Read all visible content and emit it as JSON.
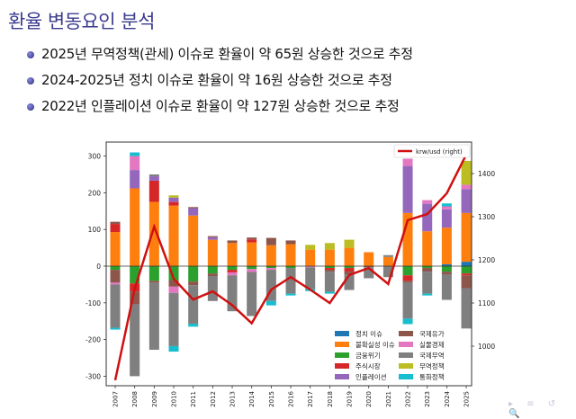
{
  "slide": {
    "title": "환율 변동요인 분석",
    "bullets": [
      "2025년 무역정책(관세) 이슈로 환율이 약 65원 상승한 것으로 추정",
      "2024-2025년 정치 이슈로 환율이 약 16원 상승한 것으로 추정",
      "2022년 인플레이션 이슈로 환율이 약 127원 상승한 것으로 추정"
    ],
    "nav_icons": [
      "▸",
      "≡",
      "↺",
      "🔍"
    ]
  },
  "colors": {
    "title": "#3b3b8f",
    "정치 이슈": "#1f77b4",
    "불확실성 이슈": "#ff7f0e",
    "금융위기": "#2ca02c",
    "주식시장": "#d62728",
    "인플레이션": "#9467bd",
    "국제유가": "#8c564b",
    "실물경제": "#e377c2",
    "국제무역": "#7f7f7f",
    "무역정책": "#bcbd22",
    "통화정책": "#17becf",
    "line": "#d01010"
  },
  "chart_data": {
    "type": "bar",
    "stacked": true,
    "title": "",
    "xlabel": "",
    "ylabel": "",
    "ylim": [
      -330,
      330
    ],
    "yticks": [
      -300,
      -200,
      -100,
      0,
      100,
      200,
      300
    ],
    "y2lim": [
      905,
      1475
    ],
    "y2ticks": [
      1000,
      1100,
      1200,
      1300,
      1400
    ],
    "categories": [
      "2007",
      "2008",
      "2009",
      "2010",
      "2011",
      "2012",
      "2013",
      "2014",
      "2015",
      "2016",
      "2017",
      "2018",
      "2019",
      "2020",
      "2021",
      "2022",
      "2023",
      "2024",
      "2025"
    ],
    "legend_position": "lower right (two columns)",
    "positive_series": [
      {
        "name": "정치 이슈",
        "values": [
          0,
          0,
          0,
          0,
          0,
          0,
          0,
          0,
          0,
          0,
          0,
          0,
          0,
          0,
          0,
          0,
          0,
          5,
          12
        ]
      },
      {
        "name": "불확실성 이슈",
        "values": [
          93,
          212,
          175,
          165,
          138,
          72,
          63,
          65,
          57,
          60,
          45,
          45,
          50,
          38,
          25,
          145,
          95,
          100,
          133
        ]
      },
      {
        "name": "주식시장",
        "values": [
          22,
          0,
          58,
          10,
          0,
          0,
          0,
          8,
          0,
          0,
          0,
          0,
          0,
          0,
          0,
          0,
          0,
          0,
          0
        ]
      },
      {
        "name": "인플레이션",
        "values": [
          0,
          50,
          12,
          12,
          20,
          7,
          0,
          0,
          0,
          0,
          0,
          0,
          0,
          0,
          0,
          128,
          75,
          50,
          65
        ]
      },
      {
        "name": "국제유가",
        "values": [
          6,
          0,
          0,
          0,
          3,
          3,
          7,
          5,
          20,
          10,
          0,
          0,
          0,
          0,
          0,
          0,
          0,
          0,
          0
        ]
      },
      {
        "name": "실물경제",
        "values": [
          0,
          38,
          0,
          0,
          0,
          0,
          0,
          0,
          0,
          0,
          0,
          0,
          0,
          0,
          0,
          20,
          10,
          8,
          12
        ]
      },
      {
        "name": "무역정책",
        "values": [
          0,
          0,
          0,
          6,
          0,
          0,
          0,
          0,
          0,
          0,
          13,
          18,
          22,
          0,
          0,
          0,
          0,
          0,
          65
        ]
      },
      {
        "name": "통화정책",
        "values": [
          0,
          10,
          0,
          0,
          0,
          0,
          0,
          0,
          0,
          0,
          0,
          0,
          0,
          0,
          0,
          0,
          0,
          8,
          0
        ]
      },
      {
        "name": "국제무역",
        "values": [
          0,
          0,
          5,
          0,
          0,
          0,
          0,
          0,
          0,
          0,
          0,
          0,
          0,
          0,
          5,
          0,
          0,
          0,
          0
        ]
      }
    ],
    "negative_series": [
      {
        "name": "정치 이슈",
        "values": [
          0,
          0,
          0,
          0,
          0,
          0,
          0,
          0,
          0,
          0,
          0,
          0,
          0,
          0,
          0,
          0,
          0,
          0,
          0
        ]
      },
      {
        "name": "금융위기",
        "values": [
          -10,
          -47,
          -40,
          -38,
          -42,
          -20,
          -10,
          -8,
          -5,
          -5,
          0,
          -5,
          -5,
          0,
          0,
          -25,
          -5,
          -15,
          -20
        ]
      },
      {
        "name": "주식시장",
        "values": [
          0,
          -22,
          0,
          0,
          0,
          0,
          -7,
          0,
          0,
          0,
          0,
          -5,
          -10,
          0,
          0,
          -15,
          0,
          0,
          -5
        ]
      },
      {
        "name": "국제유가",
        "values": [
          -35,
          -35,
          -5,
          -18,
          -10,
          -7,
          0,
          0,
          0,
          0,
          0,
          -5,
          -8,
          -3,
          0,
          -5,
          -10,
          -7,
          -35
        ]
      },
      {
        "name": "실물경제",
        "values": [
          -5,
          0,
          0,
          -17,
          0,
          0,
          -8,
          -8,
          -5,
          0,
          -3,
          0,
          0,
          0,
          0,
          0,
          0,
          0,
          0
        ]
      },
      {
        "name": "국제무역",
        "values": [
          -118,
          -196,
          -183,
          -145,
          -105,
          -68,
          -98,
          -120,
          -85,
          -70,
          -60,
          -55,
          -42,
          -30,
          -30,
          -98,
          -60,
          -70,
          -110
        ]
      },
      {
        "name": "통화정책",
        "values": [
          -5,
          0,
          0,
          -15,
          -8,
          0,
          0,
          0,
          -12,
          -5,
          -5,
          -5,
          0,
          0,
          0,
          -15,
          -5,
          0,
          0
        ]
      }
    ],
    "line_series": {
      "name": "krw/usd (right)",
      "axis": "right",
      "values": [
        921,
        1133,
        1277,
        1156,
        1108,
        1127,
        1095,
        1053,
        1131,
        1160,
        1131,
        1100,
        1165,
        1181,
        1144,
        1292,
        1306,
        1354,
        1444
      ]
    },
    "legend": [
      "정치 이슈",
      "불확실성 이슈",
      "금융위기",
      "주식시장",
      "인플레이션",
      "국제유가",
      "실물경제",
      "국제무역",
      "무역정책",
      "통화정책"
    ]
  }
}
